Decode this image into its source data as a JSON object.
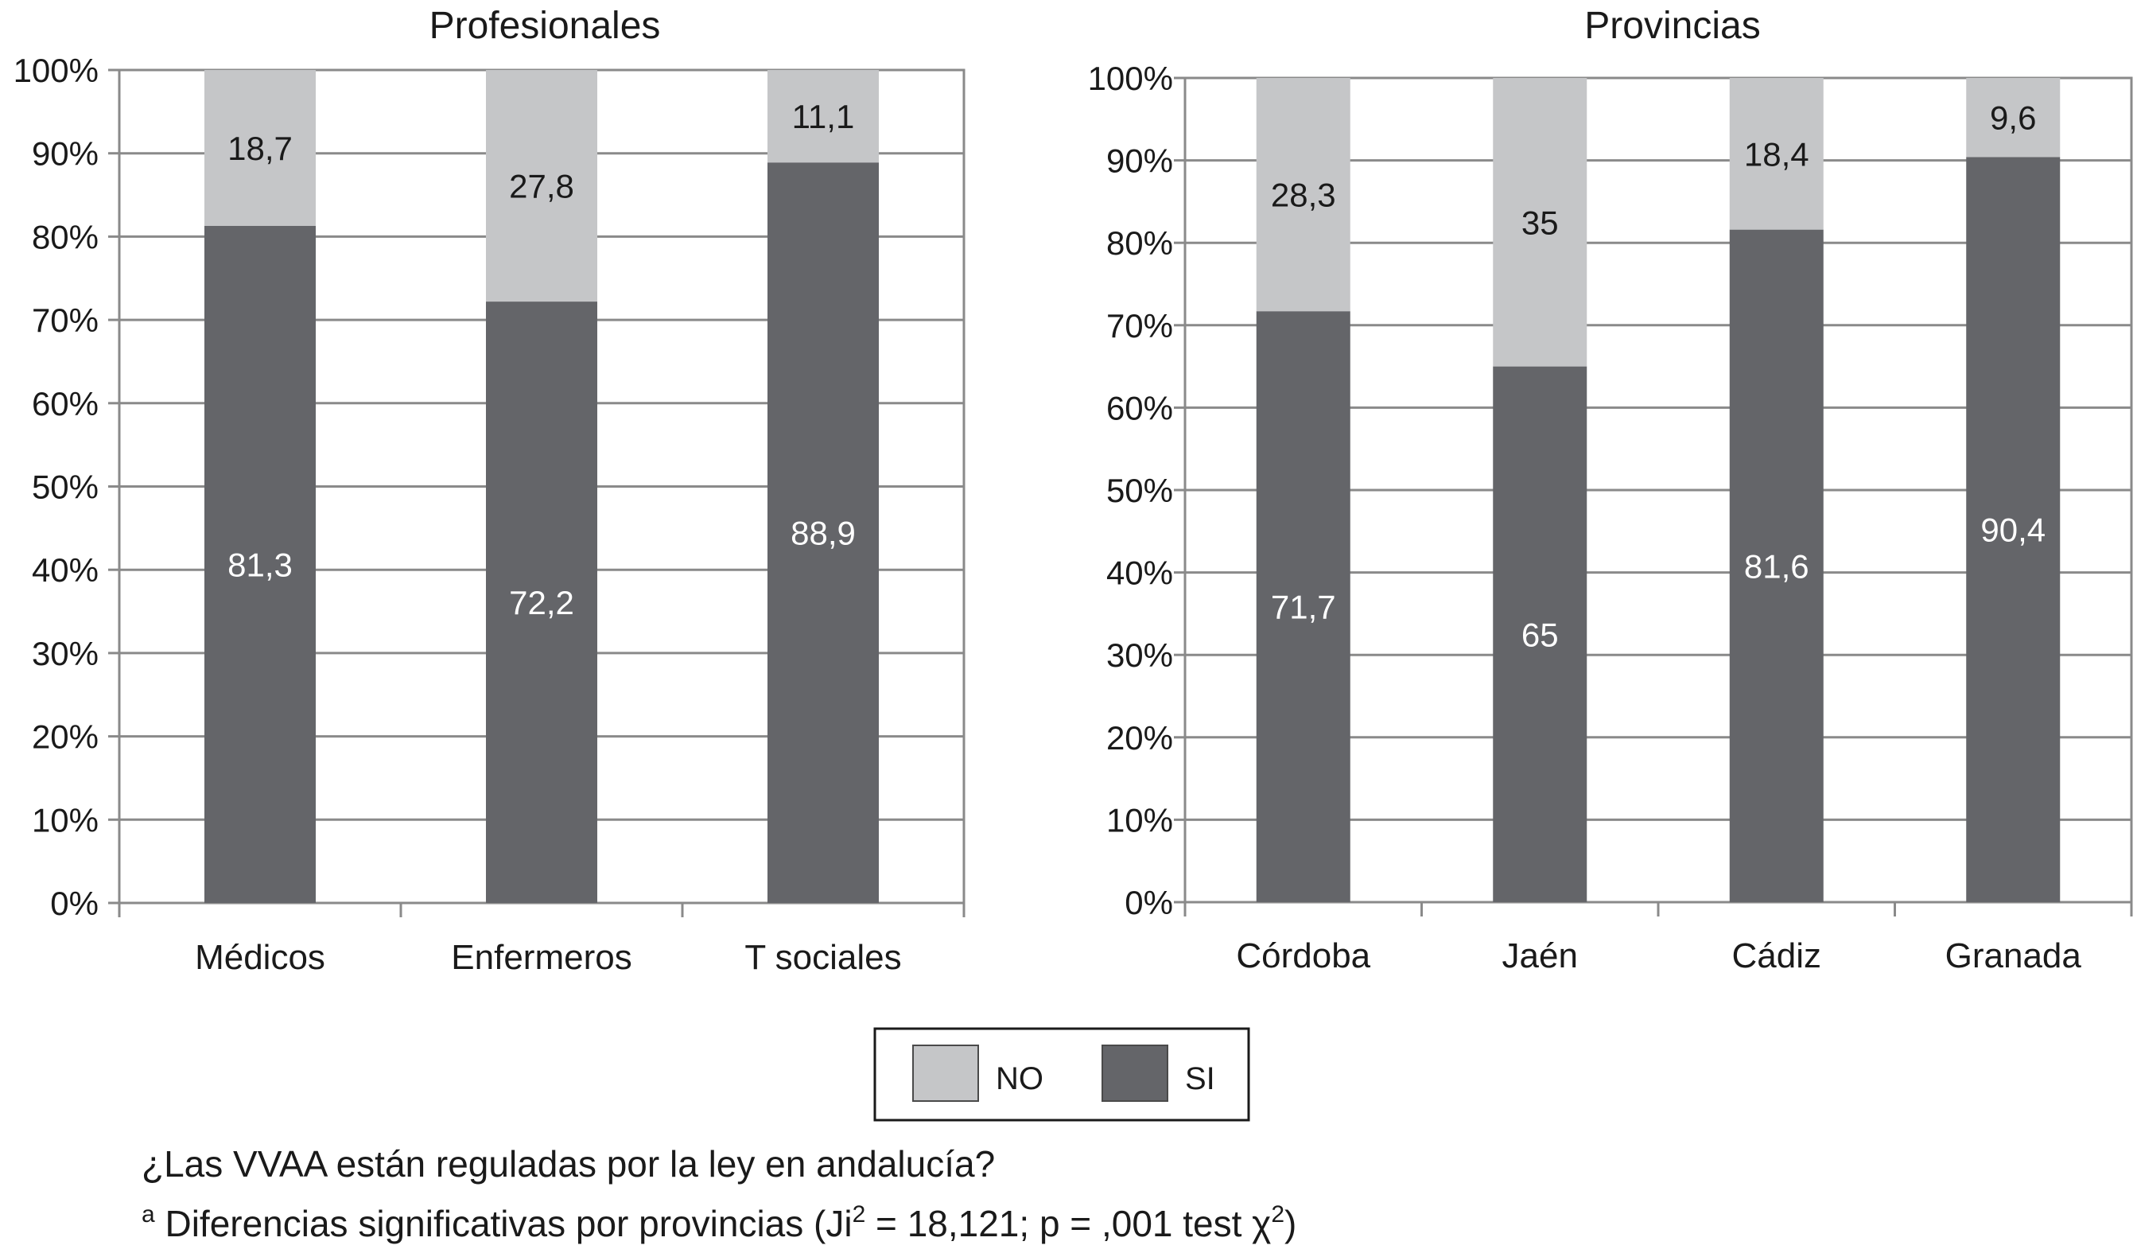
{
  "chart_data": [
    {
      "type": "bar",
      "stacked": true,
      "title": "Profesionales",
      "categories": [
        "Médicos",
        "Enfermeros",
        "T sociales"
      ],
      "series": [
        {
          "name": "SI",
          "values": [
            81.3,
            72.2,
            88.9
          ],
          "labels": [
            "81,3",
            "72,2",
            "88,9"
          ],
          "color": "#646569"
        },
        {
          "name": "NO",
          "values": [
            18.7,
            27.8,
            11.1
          ],
          "labels": [
            "18,7",
            "27,8",
            "11,1"
          ],
          "color": "#c5c6c8"
        }
      ],
      "ylim": [
        0,
        100
      ],
      "yticks": [
        "0%",
        "10%",
        "20%",
        "30%",
        "40%",
        "50%",
        "60%",
        "70%",
        "80%",
        "90%",
        "100%"
      ],
      "grid": true
    },
    {
      "type": "bar",
      "stacked": true,
      "title": "Provincias",
      "categories": [
        "Córdoba",
        "Jaén",
        "Cádiz",
        "Granada"
      ],
      "series": [
        {
          "name": "SI",
          "values": [
            71.7,
            65,
            81.6,
            90.4
          ],
          "labels": [
            "71,7",
            "65",
            "81,6",
            "90,4"
          ],
          "color": "#646569"
        },
        {
          "name": "NO",
          "values": [
            28.3,
            35,
            18.4,
            9.6
          ],
          "labels": [
            "28,3",
            "35",
            "18,4",
            "9,6"
          ],
          "color": "#c5c6c8"
        }
      ],
      "ylim": [
        0,
        100
      ],
      "yticks": [
        "0%",
        "10%",
        "20%",
        "30%",
        "40%",
        "50%",
        "60%",
        "70%",
        "80%",
        "90%",
        "100%"
      ],
      "grid": true
    }
  ],
  "legend": {
    "position": "bottom-center",
    "items": [
      {
        "name": "NO",
        "color": "#c5c6c8"
      },
      {
        "name": "SI",
        "color": "#646569"
      }
    ]
  },
  "caption": {
    "question": "¿Las VVAA están reguladas por la ley en andalucía?",
    "footnote_marker": "a",
    "footnote_part1": "Diferencias significativas por provincias (Ji",
    "footnote_sup1": "2",
    "footnote_part2": " = 18,121; p = ,001 test χ",
    "footnote_sup2": "2",
    "footnote_part3": ")"
  }
}
